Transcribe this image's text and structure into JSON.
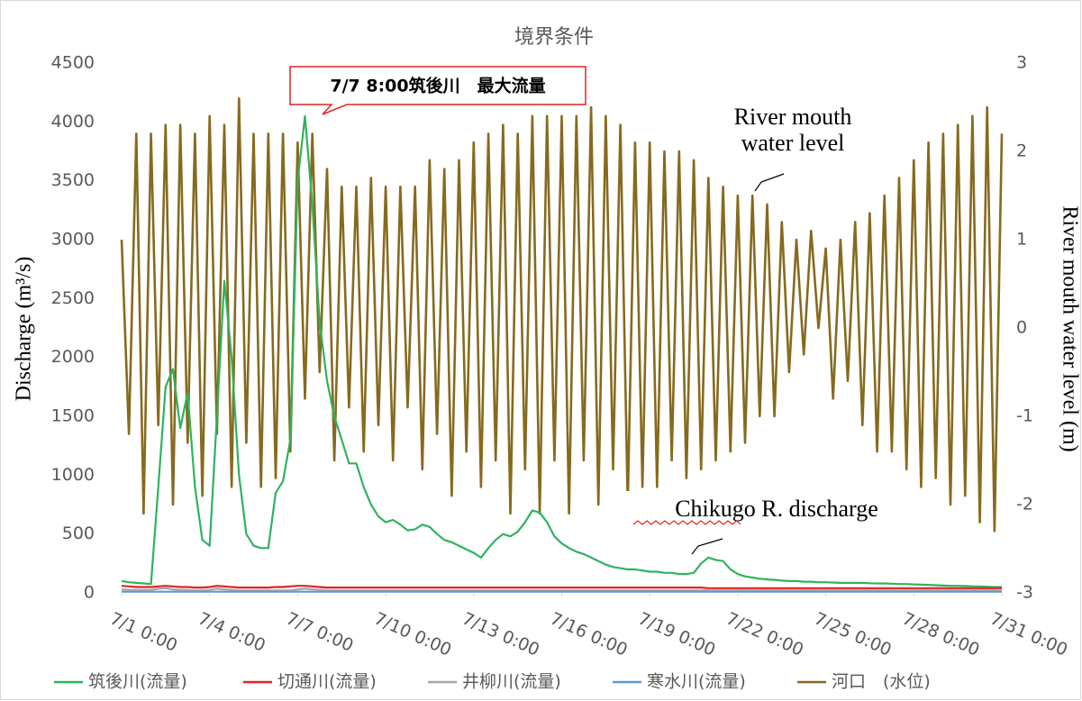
{
  "chart_data": {
    "type": "line",
    "title": "境界条件",
    "ylabel": "Discharge (m³/s)",
    "y2label": "River mouth water level (m)",
    "annotations": [
      "7/7 8:00筑後川　最大流量",
      "River mouth",
      "water level",
      "Chikugo R. discharge"
    ],
    "x": [
      0,
      0.25,
      0.5,
      0.75,
      1,
      1.25,
      1.5,
      1.75,
      2,
      2.25,
      2.5,
      2.75,
      3,
      3.25,
      3.5,
      3.75,
      4,
      4.25,
      4.5,
      4.75,
      5,
      5.25,
      5.5,
      5.75,
      6,
      6.25,
      6.5,
      6.75,
      7,
      7.25,
      7.5,
      7.75,
      8,
      8.25,
      8.5,
      8.75,
      9,
      9.25,
      9.5,
      9.75,
      10,
      10.25,
      10.5,
      10.75,
      11,
      11.25,
      11.5,
      11.75,
      12,
      12.25,
      12.5,
      12.75,
      13,
      13.25,
      13.5,
      13.75,
      14,
      14.25,
      14.5,
      14.75,
      15,
      15.25,
      15.5,
      15.75,
      16,
      16.25,
      16.5,
      16.75,
      17,
      17.25,
      17.5,
      17.75,
      18,
      18.25,
      18.5,
      18.75,
      19,
      19.25,
      19.5,
      19.75,
      20,
      20.25,
      20.5,
      20.75,
      21,
      21.25,
      21.5,
      21.75,
      22,
      22.25,
      22.5,
      22.75,
      23,
      23.25,
      23.5,
      23.75,
      24,
      24.25,
      24.5,
      24.75,
      25,
      25.25,
      25.5,
      25.75,
      26,
      26.25,
      26.5,
      26.75,
      27,
      27.25,
      27.5,
      27.75,
      28,
      28.25,
      28.5,
      28.75,
      29,
      29.25,
      29.5,
      29.75,
      30
    ],
    "xlim": [
      0,
      30
    ],
    "xticks": [
      {
        "value": 0,
        "label": "7/1 0:00"
      },
      {
        "value": 3,
        "label": "7/4 0:00"
      },
      {
        "value": 6,
        "label": "7/7 0:00"
      },
      {
        "value": 9,
        "label": "7/10 0:00"
      },
      {
        "value": 12,
        "label": "7/13 0:00"
      },
      {
        "value": 15,
        "label": "7/16 0:00"
      },
      {
        "value": 18,
        "label": "7/19 0:00"
      },
      {
        "value": 21,
        "label": "7/22 0:00"
      },
      {
        "value": 24,
        "label": "7/25 0:00"
      },
      {
        "value": 27,
        "label": "7/28 0:00"
      },
      {
        "value": 30,
        "label": "7/31 0:00"
      }
    ],
    "ylim": [
      0,
      4500
    ],
    "yticks": [
      0,
      500,
      1000,
      1500,
      2000,
      2500,
      3000,
      3500,
      4000,
      4500
    ],
    "y2lim": [
      -3,
      3
    ],
    "y2ticks": [
      -3,
      -2,
      -1,
      0,
      1,
      2,
      3
    ],
    "grid": false,
    "legend": "bottom",
    "series": [
      {
        "name": "筑後川(流量)",
        "color": "#2eb35f",
        "values": [
          100,
          90,
          85,
          80,
          75,
          900,
          1750,
          1900,
          1400,
          1700,
          900,
          450,
          400,
          1500,
          2650,
          2000,
          1000,
          500,
          400,
          380,
          380,
          850,
          950,
          1300,
          3500,
          4050,
          3300,
          2300,
          1800,
          1500,
          1300,
          1100,
          1100,
          900,
          750,
          650,
          600,
          620,
          580,
          530,
          540,
          580,
          560,
          500,
          450,
          430,
          400,
          370,
          340,
          300,
          380,
          450,
          500,
          480,
          520,
          600,
          700,
          680,
          600,
          480,
          420,
          380,
          350,
          330,
          300,
          270,
          240,
          220,
          210,
          200,
          200,
          190,
          180,
          180,
          170,
          170,
          160,
          160,
          170,
          250,
          300,
          280,
          270,
          200,
          160,
          140,
          130,
          120,
          115,
          110,
          105,
          100,
          100,
          95,
          95,
          90,
          90,
          88,
          85,
          85,
          85,
          85,
          82,
          80,
          80,
          78,
          75,
          75,
          72,
          70,
          68,
          65,
          62,
          60,
          60,
          58,
          56,
          55,
          52,
          50,
          50
        ]
      },
      {
        "name": "切通川(流量)",
        "color": "#e32222",
        "values": [
          60,
          55,
          50,
          50,
          50,
          55,
          60,
          55,
          50,
          50,
          45,
          45,
          50,
          60,
          55,
          50,
          45,
          45,
          45,
          45,
          45,
          50,
          50,
          55,
          60,
          60,
          55,
          50,
          45,
          45,
          45,
          45,
          45,
          45,
          45,
          45,
          45,
          45,
          45,
          45,
          45,
          45,
          45,
          45,
          45,
          45,
          45,
          45,
          45,
          45,
          45,
          45,
          45,
          45,
          45,
          45,
          45,
          45,
          45,
          45,
          45,
          45,
          45,
          45,
          45,
          45,
          45,
          45,
          45,
          45,
          45,
          45,
          45,
          45,
          45,
          45,
          45,
          45,
          45,
          45,
          40,
          40,
          40,
          40,
          40,
          40,
          40,
          40,
          40,
          40,
          40,
          40,
          40,
          40,
          40,
          40,
          40,
          40,
          40,
          40,
          40,
          40,
          40,
          40,
          40,
          40,
          40,
          40,
          40,
          40,
          40,
          40,
          40,
          40,
          40,
          40,
          40,
          40,
          40,
          40,
          40
        ]
      },
      {
        "name": "井柳川(流量)",
        "color": "#a5a5a5",
        "values": [
          30,
          25,
          25,
          25,
          25,
          35,
          40,
          30,
          25,
          25,
          20,
          20,
          25,
          35,
          30,
          25,
          20,
          20,
          20,
          20,
          20,
          20,
          20,
          20,
          30,
          35,
          30,
          25,
          20,
          20,
          20,
          20,
          20,
          20,
          20,
          20,
          20,
          20,
          20,
          20,
          20,
          20,
          20,
          20,
          20,
          20,
          20,
          20,
          20,
          20,
          20,
          20,
          20,
          20,
          20,
          20,
          20,
          20,
          20,
          20,
          20,
          20,
          20,
          20,
          20,
          20,
          20,
          20,
          20,
          20,
          20,
          20,
          20,
          20,
          20,
          20,
          20,
          20,
          20,
          20,
          20,
          20,
          20,
          20,
          20,
          20,
          20,
          20,
          20,
          20,
          20,
          20,
          20,
          20,
          20,
          20,
          20,
          20,
          20,
          20,
          20,
          20,
          20,
          20,
          20,
          20,
          20,
          20,
          20,
          20,
          20,
          20,
          20,
          20,
          20,
          20,
          20,
          20,
          20,
          20,
          20
        ]
      },
      {
        "name": "寒水川(流量)",
        "color": "#5b9bd5",
        "values": [
          10,
          10,
          10,
          10,
          10,
          10,
          10,
          10,
          10,
          10,
          10,
          10,
          10,
          10,
          10,
          10,
          10,
          10,
          10,
          10,
          10,
          10,
          10,
          10,
          10,
          10,
          10,
          10,
          10,
          10,
          10,
          10,
          10,
          10,
          10,
          10,
          10,
          10,
          10,
          10,
          10,
          10,
          10,
          10,
          10,
          10,
          10,
          10,
          10,
          10,
          10,
          10,
          10,
          10,
          10,
          10,
          10,
          10,
          10,
          10,
          10,
          10,
          10,
          10,
          10,
          10,
          10,
          10,
          10,
          10,
          10,
          10,
          10,
          10,
          10,
          10,
          10,
          10,
          10,
          10,
          10,
          10,
          10,
          10,
          10,
          10,
          10,
          10,
          10,
          10,
          10,
          10,
          10,
          10,
          10,
          10,
          10,
          10,
          10,
          10,
          10,
          10,
          10,
          10,
          10,
          10,
          10,
          10,
          10,
          10,
          10,
          10,
          10,
          10,
          10,
          10,
          10,
          10,
          10,
          10,
          10
        ]
      },
      {
        "name": "河口　(水位)",
        "color": "#866a1e",
        "axis": "y2",
        "values": [
          1.0,
          -1.2,
          2.2,
          -2.1,
          2.2,
          -1.1,
          2.3,
          -2.0,
          2.3,
          -1.3,
          2.2,
          -1.9,
          2.4,
          -1.2,
          2.3,
          -1.8,
          2.6,
          -1.3,
          2.2,
          -1.8,
          2.2,
          -1.7,
          2.2,
          -1.4,
          2.1,
          -0.8,
          2.2,
          -0.5,
          1.8,
          -1.5,
          1.6,
          -0.9,
          1.6,
          -1.4,
          1.7,
          -1.1,
          1.6,
          -1.5,
          1.6,
          -0.9,
          1.6,
          -1.6,
          1.9,
          -1.2,
          1.8,
          -1.9,
          1.9,
          -1.4,
          2.1,
          -1.8,
          2.2,
          -1.5,
          2.3,
          -2.1,
          2.2,
          -1.6,
          2.4,
          -2.1,
          2.4,
          -1.5,
          2.4,
          -2.1,
          2.4,
          -1.5,
          2.5,
          -2.0,
          2.4,
          -1.6,
          2.3,
          -2.0,
          2.1,
          -1.8,
          2.1,
          -1.8,
          2.0,
          -1.5,
          2.0,
          -1.7,
          1.9,
          -1.6,
          1.7,
          -1.5,
          1.6,
          -1.4,
          1.5,
          -1.3,
          1.5,
          -1.0,
          1.4,
          -1.0,
          1.2,
          -0.5,
          1.0,
          -0.3,
          1.1,
          0.0,
          0.9,
          -0.8,
          1.0,
          -0.6,
          1.2,
          -1.1,
          1.3,
          -1.4,
          1.5,
          -1.4,
          1.7,
          -1.6,
          1.9,
          -1.8,
          2.1,
          -1.7,
          2.2,
          -2.0,
          2.3,
          -1.9,
          2.4,
          -2.2,
          2.5,
          -2.3,
          2.2
        ]
      }
    ]
  }
}
